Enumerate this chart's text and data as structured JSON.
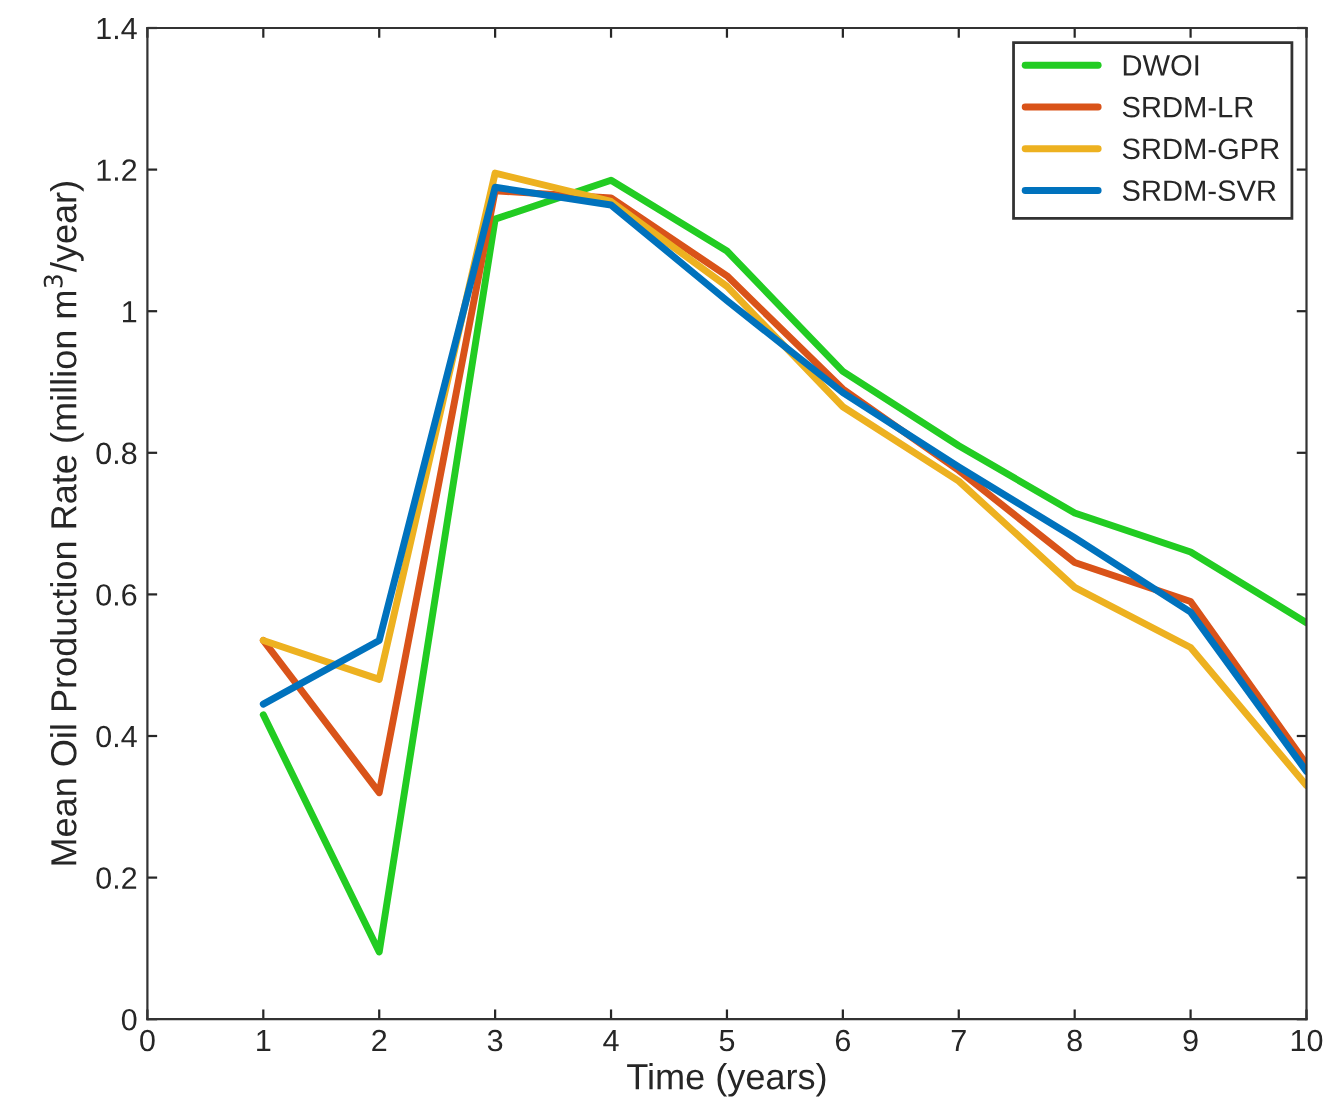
{
  "chart_data": {
    "type": "line",
    "xlabel": "Time (years)",
    "ylabel": "Mean Oil Production Rate (million m$^{3}$/year)",
    "x": [
      1,
      2,
      3,
      4,
      5,
      6,
      7,
      8,
      9,
      10
    ],
    "series": [
      {
        "name": "DWOI",
        "color": "#22cc22",
        "values": [
          0.43,
          0.095,
          1.13,
          1.185,
          1.085,
          0.915,
          0.81,
          0.715,
          0.66,
          0.56
        ]
      },
      {
        "name": "SRDM-LR",
        "color": "#d95319",
        "values": [
          0.535,
          0.32,
          1.17,
          1.16,
          1.05,
          0.89,
          0.775,
          0.645,
          0.59,
          0.36
        ]
      },
      {
        "name": "SRDM-GPR",
        "color": "#edb120",
        "values": [
          0.535,
          0.48,
          1.195,
          1.155,
          1.035,
          0.865,
          0.76,
          0.61,
          0.525,
          0.33
        ]
      },
      {
        "name": "SRDM-SVR",
        "color": "#0072bd",
        "values": [
          0.445,
          0.535,
          1.175,
          1.15,
          1.015,
          0.885,
          0.78,
          0.68,
          0.575,
          0.35
        ]
      }
    ],
    "xlim": [
      0,
      10
    ],
    "xticks": [
      0,
      1,
      2,
      3,
      4,
      5,
      6,
      7,
      8,
      9,
      10
    ],
    "ylim": [
      0,
      1.4
    ],
    "yticks": [
      0,
      {
        "value": 0.2,
        "label": "0.2"
      },
      {
        "value": 0.4,
        "label": "0.4"
      },
      {
        "value": 0.6,
        "label": "0.6"
      },
      {
        "value": 0.8,
        "label": "0.8"
      },
      1,
      {
        "value": 1.2,
        "label": "1.2"
      },
      {
        "value": 1.4,
        "label": "1.4"
      }
    ],
    "grid": false,
    "legend": "top right",
    "line_style": "solid",
    "marker": "none"
  }
}
